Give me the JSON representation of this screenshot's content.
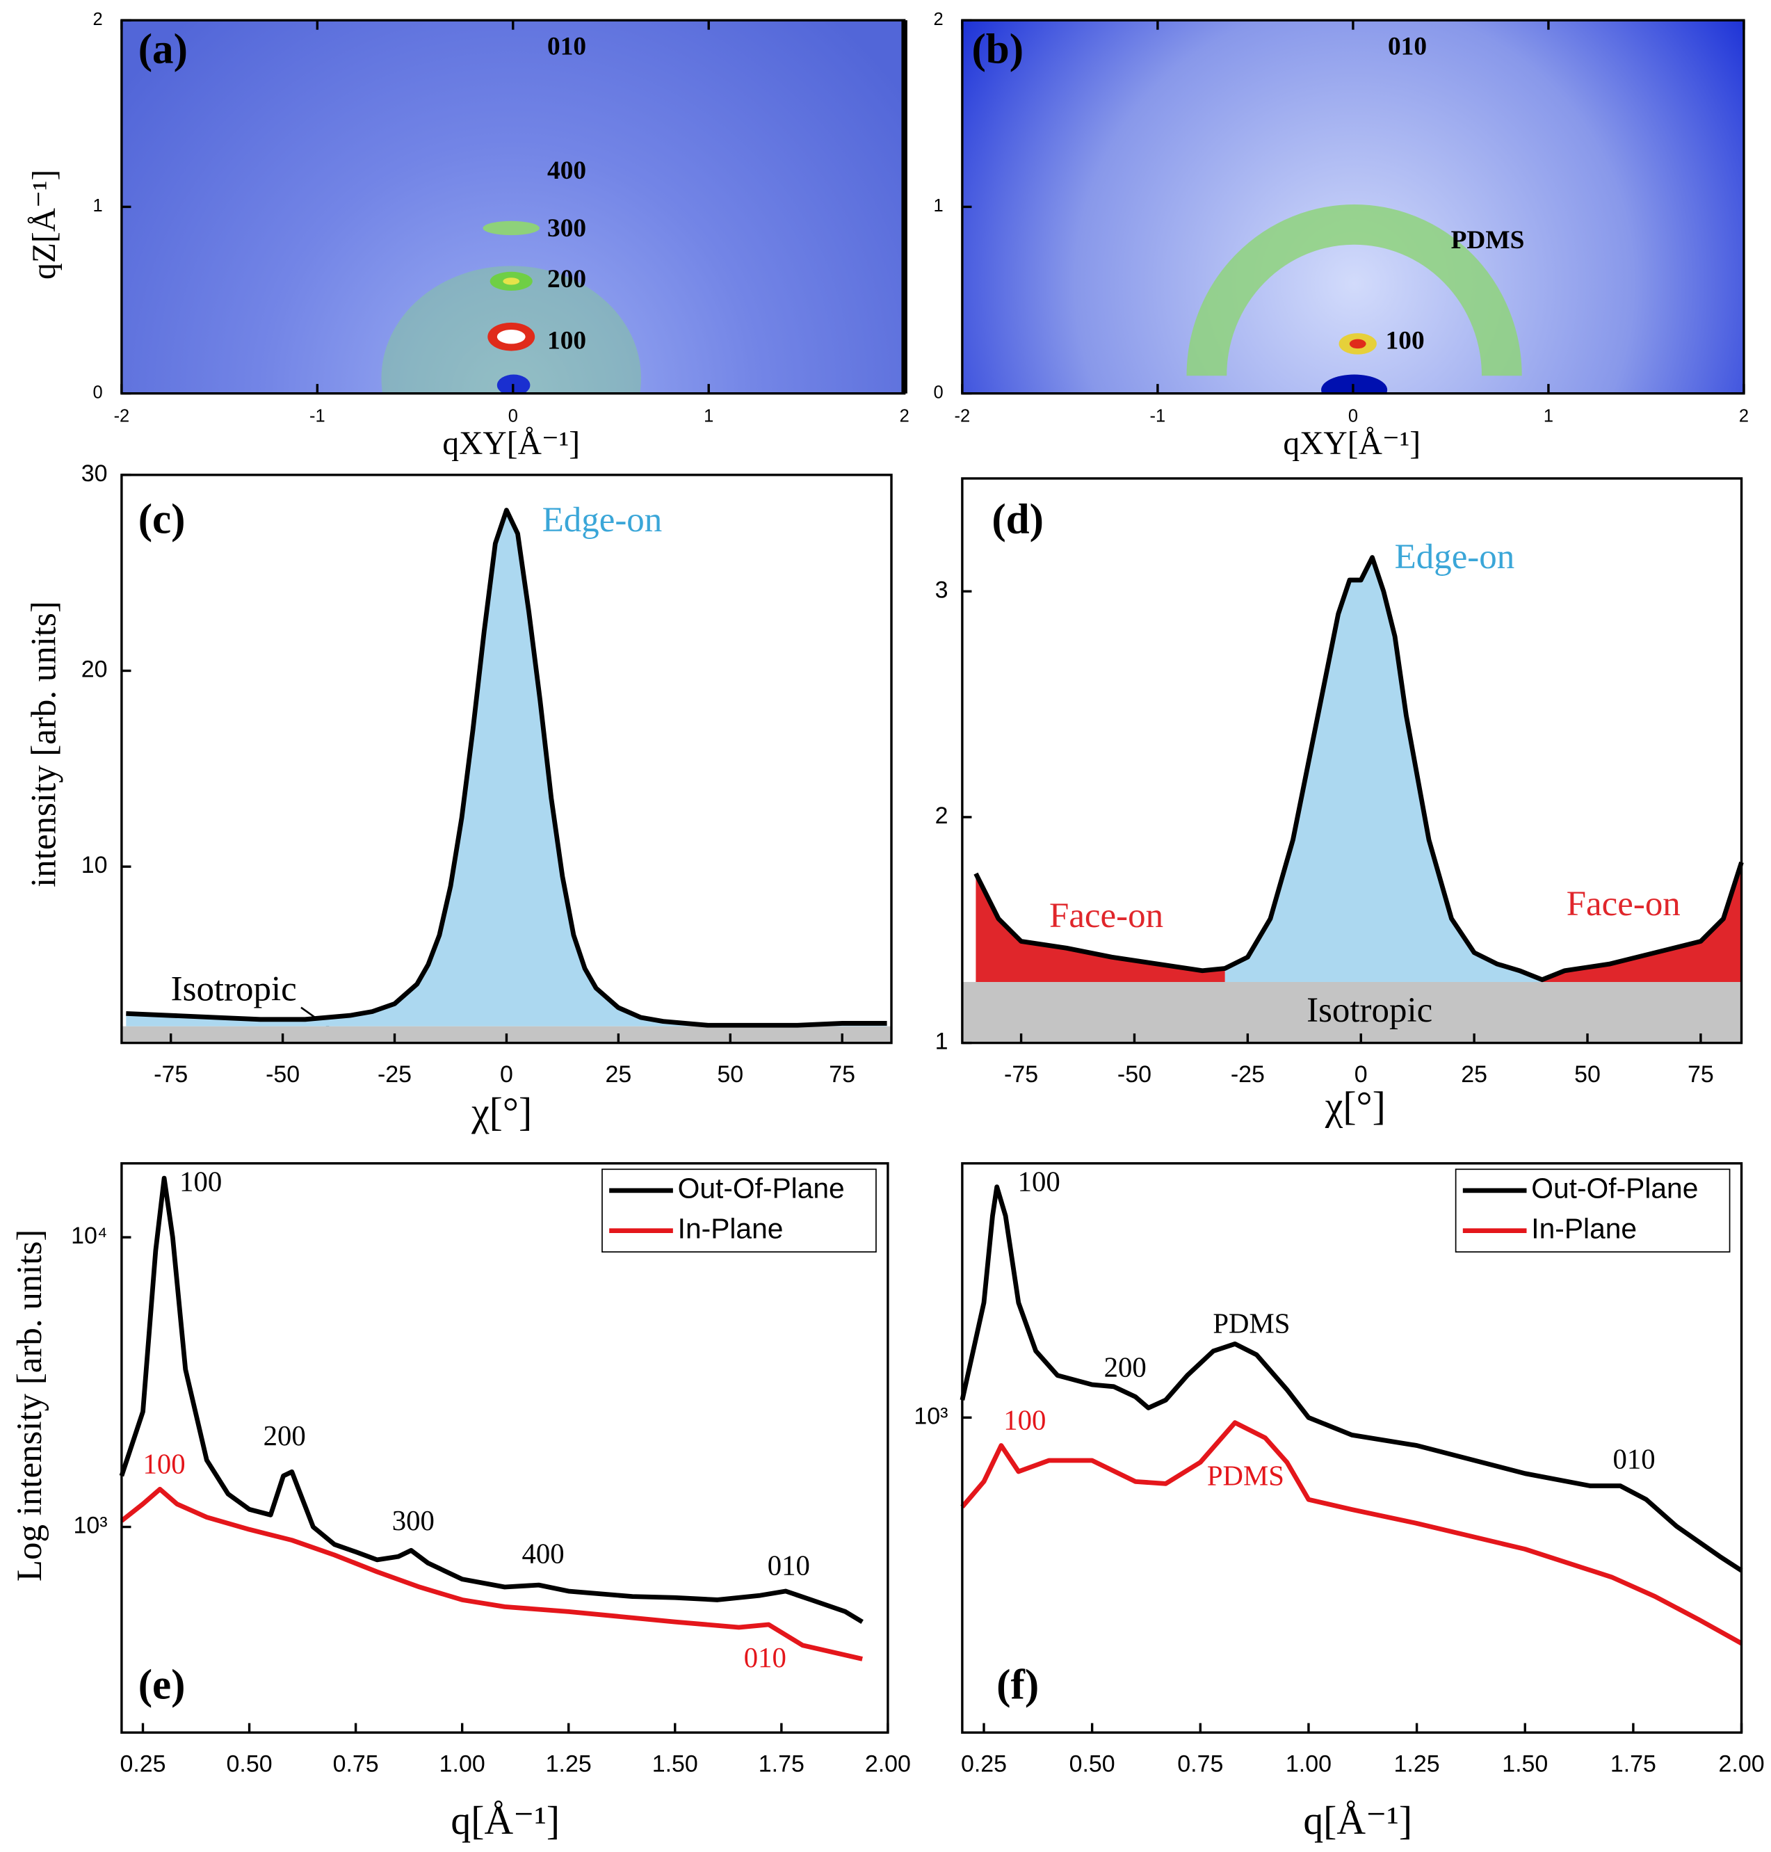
{
  "chart_data": [
    {
      "type": "image",
      "label": "(a)",
      "xlabel": "qXY[Å⁻¹]",
      "ylabel": "qZ[Å⁻¹]",
      "xlim": [
        -2,
        2
      ],
      "ylim": [
        0,
        2
      ],
      "xticks": [
        -2,
        -1,
        0,
        1,
        2
      ],
      "yticks": [
        0,
        1,
        2
      ],
      "annotations": [
        {
          "text": "010",
          "color": "#000000"
        },
        {
          "text": "400",
          "color": "#000000"
        },
        {
          "text": "300",
          "color": "#000000"
        },
        {
          "text": "200",
          "color": "#000000"
        },
        {
          "text": "100",
          "color": "#000000"
        }
      ]
    },
    {
      "type": "image",
      "label": "(b)",
      "xlabel": "qXY[Å⁻¹]",
      "xlim": [
        -2,
        2
      ],
      "ylim": [
        0,
        2
      ],
      "xticks": [
        -2,
        -1,
        0,
        1,
        2
      ],
      "yticks": [
        0,
        1,
        2
      ],
      "annotations": [
        {
          "text": "010",
          "color": "#000000"
        },
        {
          "text": "PDMS",
          "color": "#000000"
        },
        {
          "text": "100",
          "color": "#000000"
        }
      ]
    },
    {
      "type": "area",
      "label": "(c)",
      "xlabel": "χ[°]",
      "ylabel": "intensity [arb. units]",
      "xlim": [
        -86,
        86
      ],
      "ylim": [
        1,
        30
      ],
      "xticks": [
        -75,
        -50,
        -25,
        0,
        25,
        50,
        75
      ],
      "yticks": [
        10,
        20,
        30
      ],
      "line_color": "#000000",
      "isotropic_level": 1.85,
      "isotropic_color": "#c4c4c4",
      "series": [
        {
          "color": "#acd8f0",
          "x": [
            -85,
            -75,
            -65,
            -55,
            -45,
            -35,
            -30,
            -25,
            -20,
            -17.5,
            -15,
            -12.5,
            -10,
            -7.5,
            -5,
            -2.5,
            0,
            2.5,
            5,
            7.5,
            10,
            12.5,
            15,
            17.5,
            20,
            25,
            30,
            35,
            45,
            55,
            65,
            75,
            85
          ],
          "values": [
            2.5,
            2.4,
            2.3,
            2.2,
            2.2,
            2.4,
            2.6,
            3.0,
            4.0,
            5.0,
            6.5,
            9.0,
            12.5,
            17.0,
            22.0,
            26.5,
            28.2,
            27.0,
            23.0,
            18.5,
            13.5,
            9.5,
            6.5,
            4.8,
            3.8,
            2.8,
            2.3,
            2.1,
            1.9,
            1.9,
            1.9,
            2.0,
            2.0
          ]
        }
      ],
      "annotations": [
        {
          "text": "Edge-on",
          "color": "#3aa6d8"
        },
        {
          "text": "Isotropic",
          "color": "#000000"
        }
      ]
    },
    {
      "type": "area",
      "label": "(d)",
      "xlabel": "χ[°]",
      "xlim": [
        -88,
        84
      ],
      "ylim": [
        1,
        3.5
      ],
      "xticks": [
        -75,
        -50,
        -25,
        0,
        25,
        50,
        75
      ],
      "yticks": [
        1,
        2,
        3
      ],
      "line_color": "#000000",
      "isotropic_level": 1.27,
      "isotropic_color": "#c4c4c4",
      "series": [
        {
          "color": "#e0262b",
          "x": [
            -85,
            -80,
            -75,
            -65,
            -55,
            -45,
            -35
          ],
          "values": [
            1.75,
            1.55,
            1.45,
            1.42,
            1.38,
            1.35,
            1.32
          ]
        },
        {
          "color": "#acd8f0",
          "x": [
            -30,
            -25,
            -20,
            -15,
            -10,
            -5,
            -2.5,
            0,
            2.5,
            5,
            7.5,
            10,
            15,
            20,
            25,
            30,
            35
          ],
          "values": [
            1.33,
            1.38,
            1.55,
            1.9,
            2.4,
            2.9,
            3.05,
            3.05,
            3.15,
            3.0,
            2.8,
            2.45,
            1.9,
            1.55,
            1.4,
            1.35,
            1.32
          ]
        },
        {
          "color": "#e0262b",
          "x": [
            40,
            45,
            55,
            65,
            75,
            80,
            84
          ],
          "values": [
            1.28,
            1.32,
            1.35,
            1.4,
            1.45,
            1.55,
            1.8
          ]
        }
      ],
      "annotations": [
        {
          "text": "Edge-on",
          "color": "#3aa6d8"
        },
        {
          "text": "Face-on",
          "color": "#e0262b"
        },
        {
          "text": "Face-on",
          "color": "#e0262b"
        },
        {
          "text": "Isotropic",
          "color": "#000000"
        }
      ]
    },
    {
      "type": "line",
      "label": "(e)",
      "xlabel": "q[Å⁻¹]",
      "ylabel": "Log intensity [arb. units]",
      "log_y": true,
      "legend": "upper right",
      "xlim": [
        0.2,
        2.0
      ],
      "ylim": [
        195,
        18000
      ],
      "xticks": [
        0.25,
        {
          "value": 0.5,
          "label": "0.50"
        },
        0.75,
        {
          "value": 1,
          "label": "1.00"
        },
        1.25,
        {
          "value": 1.5,
          "label": "1.50"
        },
        1.75,
        {
          "value": 2,
          "label": "2.00"
        }
      ],
      "yticks": [
        {
          "value": 1000,
          "label": "10³"
        },
        {
          "value": 10000,
          "label": "10⁴"
        }
      ],
      "series": [
        {
          "name": "Out-Of-Plane",
          "color": "#000000",
          "x": [
            0.2,
            0.25,
            0.28,
            0.3,
            0.32,
            0.35,
            0.4,
            0.45,
            0.5,
            0.55,
            0.58,
            0.6,
            0.62,
            0.65,
            0.7,
            0.75,
            0.8,
            0.85,
            0.88,
            0.92,
            1.0,
            1.1,
            1.18,
            1.25,
            1.4,
            1.5,
            1.6,
            1.7,
            1.76,
            1.82,
            1.9,
            1.94
          ],
          "values": [
            1500,
            2500,
            9000,
            16000,
            10000,
            3500,
            1700,
            1300,
            1150,
            1100,
            1500,
            1550,
            1300,
            1000,
            870,
            820,
            770,
            790,
            830,
            750,
            660,
            620,
            630,
            600,
            575,
            570,
            560,
            580,
            600,
            560,
            510,
            470
          ]
        },
        {
          "name": "In-Plane",
          "color": "#e4161b",
          "x": [
            0.2,
            0.25,
            0.29,
            0.33,
            0.4,
            0.5,
            0.6,
            0.7,
            0.8,
            0.9,
            1.0,
            1.1,
            1.25,
            1.5,
            1.65,
            1.72,
            1.8,
            1.94
          ],
          "values": [
            1050,
            1200,
            1350,
            1200,
            1080,
            980,
            900,
            800,
            700,
            620,
            560,
            530,
            510,
            470,
            450,
            460,
            390,
            350
          ]
        }
      ],
      "annotations": [
        {
          "text": "100",
          "color": "#000000"
        },
        {
          "text": "200",
          "color": "#000000"
        },
        {
          "text": "300",
          "color": "#000000"
        },
        {
          "text": "400",
          "color": "#000000"
        },
        {
          "text": "010",
          "color": "#000000"
        },
        {
          "text": "100",
          "color": "#e4161b"
        },
        {
          "text": "010",
          "color": "#e4161b"
        }
      ]
    },
    {
      "type": "line",
      "label": "(f)",
      "xlabel": "q[Å⁻¹]",
      "log_y": true,
      "legend": "upper right",
      "xlim": [
        0.2,
        2.0
      ],
      "ylim": [
        81,
        7600
      ],
      "xticks": [
        0.25,
        {
          "value": 0.5,
          "label": "0.50"
        },
        0.75,
        {
          "value": 1,
          "label": "1.00"
        },
        1.25,
        {
          "value": 1.5,
          "label": "1.50"
        },
        1.75,
        {
          "value": 2,
          "label": "2.00"
        }
      ],
      "yticks": [
        {
          "value": 1000,
          "label": "10³"
        }
      ],
      "series": [
        {
          "name": "Out-Of-Plane",
          "color": "#000000",
          "x": [
            0.2,
            0.25,
            0.27,
            0.28,
            0.3,
            0.33,
            0.37,
            0.42,
            0.5,
            0.55,
            0.6,
            0.63,
            0.67,
            0.72,
            0.78,
            0.83,
            0.88,
            0.95,
            1.0,
            1.1,
            1.25,
            1.5,
            1.65,
            1.72,
            1.78,
            1.85,
            1.95,
            2.0
          ],
          "values": [
            1150,
            2500,
            5000,
            6300,
            5000,
            2500,
            1700,
            1400,
            1300,
            1280,
            1180,
            1080,
            1150,
            1400,
            1700,
            1800,
            1650,
            1250,
            1000,
            870,
            800,
            640,
            580,
            580,
            520,
            420,
            330,
            295
          ]
        },
        {
          "name": "In-Plane",
          "color": "#e4161b",
          "x": [
            0.2,
            0.25,
            0.29,
            0.33,
            0.4,
            0.5,
            0.6,
            0.67,
            0.75,
            0.83,
            0.9,
            0.95,
            1.0,
            1.1,
            1.25,
            1.5,
            1.7,
            1.8,
            1.9,
            2.0
          ],
          "values": [
            490,
            600,
            800,
            650,
            710,
            710,
            600,
            590,
            700,
            960,
            850,
            700,
            520,
            480,
            430,
            350,
            280,
            240,
            200,
            165
          ]
        }
      ],
      "annotations": [
        {
          "text": "100",
          "color": "#000000"
        },
        {
          "text": "200",
          "color": "#000000"
        },
        {
          "text": "PDMS",
          "color": "#000000"
        },
        {
          "text": "010",
          "color": "#000000"
        },
        {
          "text": "100",
          "color": "#e4161b"
        },
        {
          "text": "PDMS",
          "color": "#e4161b"
        }
      ]
    }
  ]
}
